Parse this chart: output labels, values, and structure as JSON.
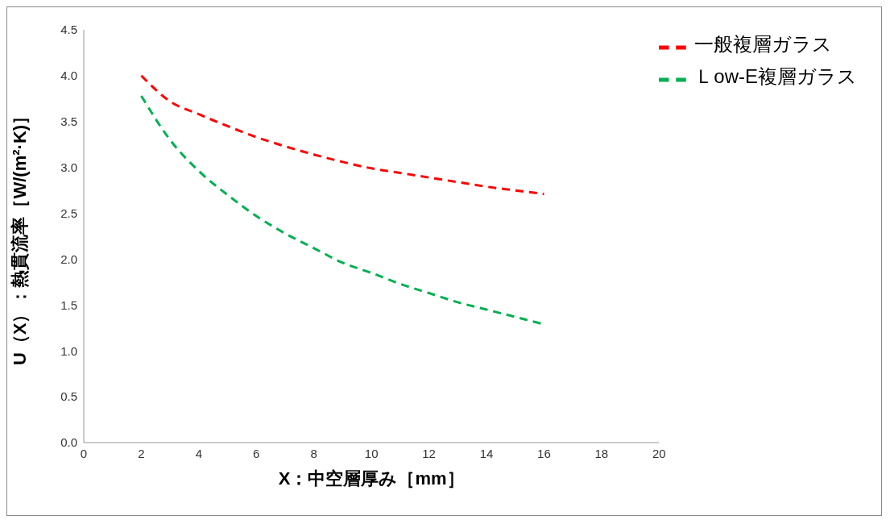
{
  "chart_data": {
    "type": "line",
    "xlabel": "X：中空層厚み［mm］",
    "ylabel": "U（X）：熱貫流率［W/(m²·K)］",
    "x": [
      2,
      3,
      4,
      5,
      6,
      7,
      8,
      9,
      10,
      11,
      12,
      13,
      14,
      15,
      16
    ],
    "series": [
      {
        "name": "一般複層ガラス",
        "color": "#ff0000",
        "line_style": "dashed",
        "values": [
          4.0,
          3.72,
          3.58,
          3.45,
          3.33,
          3.23,
          3.14,
          3.06,
          2.99,
          2.94,
          2.89,
          2.84,
          2.79,
          2.75,
          2.71
        ]
      },
      {
        "name": "Ｌow-E複層ガラス",
        "color": "#00b050",
        "line_style": "dashed",
        "values": [
          3.78,
          3.3,
          2.96,
          2.7,
          2.47,
          2.28,
          2.12,
          1.96,
          1.85,
          1.73,
          1.63,
          1.53,
          1.45,
          1.37,
          1.29
        ]
      }
    ],
    "xlim": [
      0,
      20
    ],
    "xticks": [
      0,
      2,
      4,
      6,
      8,
      10,
      12,
      14,
      16,
      18,
      20
    ],
    "ylim": [
      0,
      4.5
    ],
    "yticks": [
      {
        "value": 0,
        "label": "0.0"
      },
      {
        "value": 0.5,
        "label": "0.5"
      },
      {
        "value": 1,
        "label": "1.0"
      },
      {
        "value": 1.5,
        "label": "1.5"
      },
      {
        "value": 2,
        "label": "2.0"
      },
      {
        "value": 2.5,
        "label": "2.5"
      },
      {
        "value": 3,
        "label": "3.0"
      },
      {
        "value": 3.5,
        "label": "3.5"
      },
      {
        "value": 4,
        "label": "4.0"
      },
      {
        "value": 4.5,
        "label": "4.5"
      }
    ],
    "grid": false,
    "legend": "top right",
    "marker": "none"
  }
}
